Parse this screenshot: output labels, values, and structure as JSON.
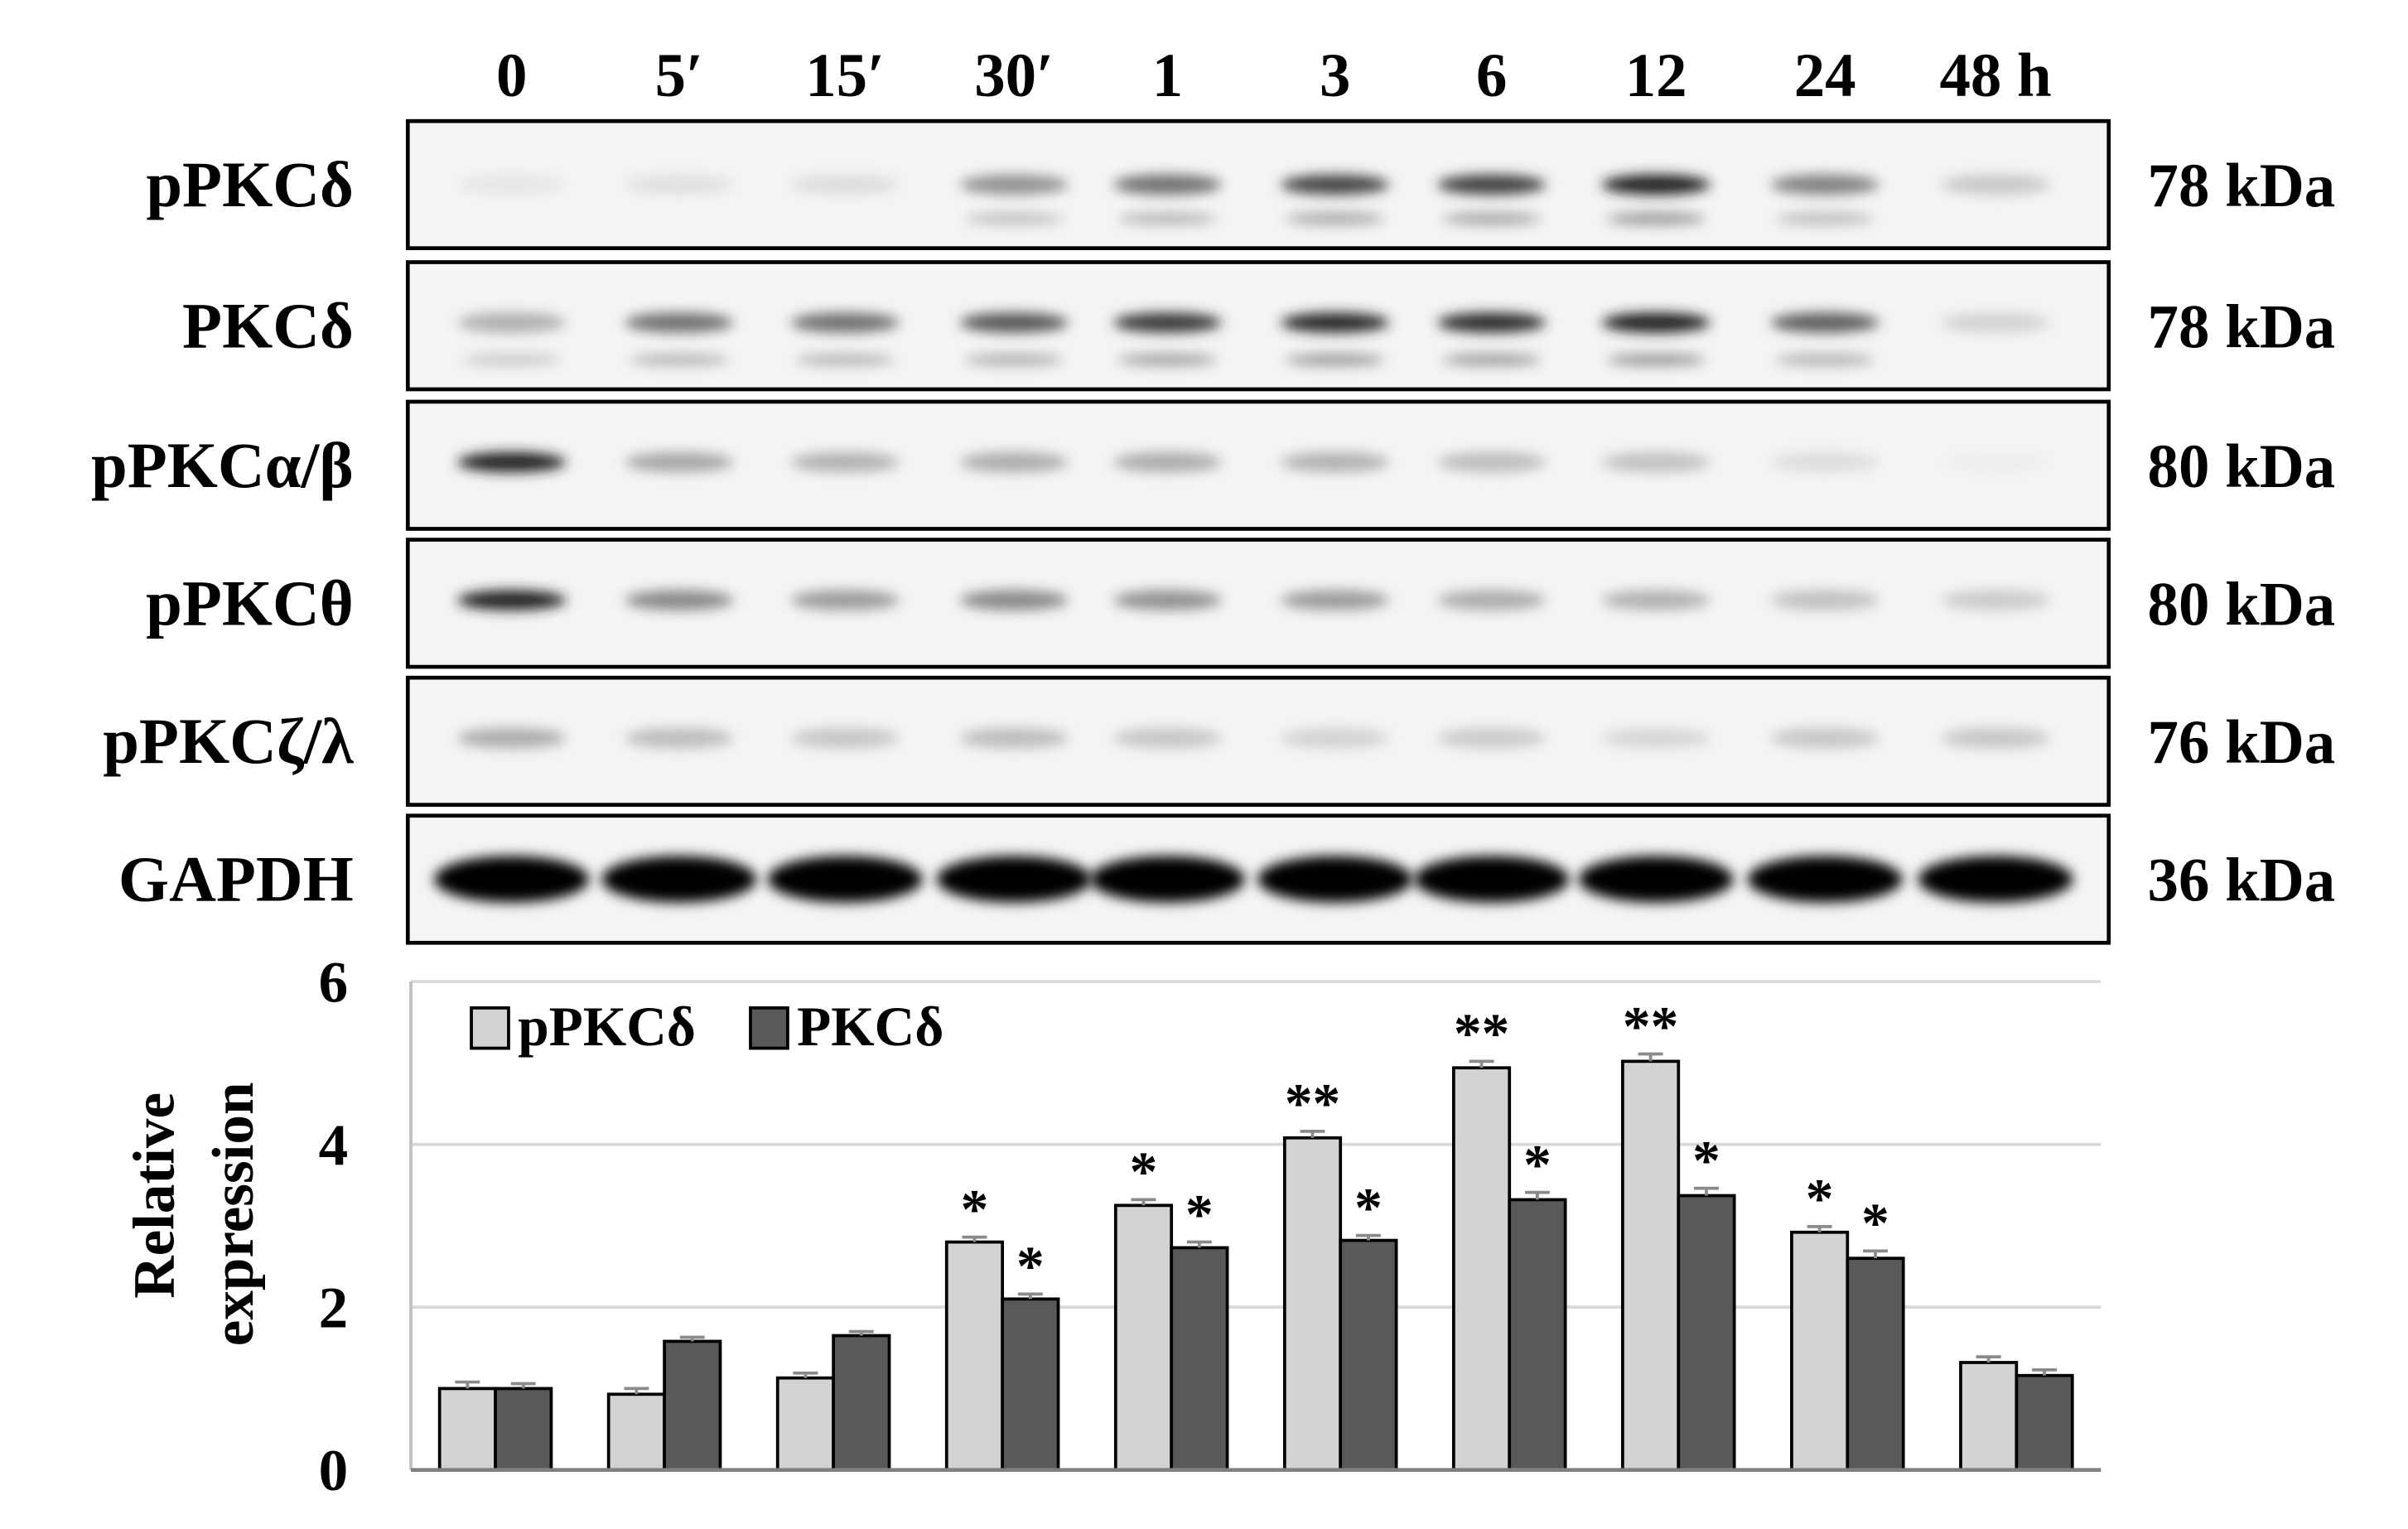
{
  "blot": {
    "time_labels": [
      "0",
      "5′",
      "15′",
      "30′",
      "1",
      "3",
      "6",
      "12",
      "24",
      "48 h"
    ],
    "rows": [
      {
        "label": "pPKCδ",
        "size": "78 kDa",
        "intensity": [
          0.08,
          0.12,
          0.14,
          0.45,
          0.55,
          0.7,
          0.72,
          0.85,
          0.5,
          0.25
        ]
      },
      {
        "label": "PKCδ",
        "size": "78 kDa",
        "intensity": [
          0.35,
          0.55,
          0.55,
          0.62,
          0.75,
          0.82,
          0.8,
          0.85,
          0.6,
          0.2
        ]
      },
      {
        "label": "pPKCα/β",
        "size": "80 kDa",
        "intensity": [
          0.85,
          0.38,
          0.34,
          0.36,
          0.36,
          0.34,
          0.3,
          0.28,
          0.14,
          0.03
        ]
      },
      {
        "label": "pPKCθ",
        "size": "80 kDa",
        "intensity": [
          0.85,
          0.48,
          0.42,
          0.48,
          0.45,
          0.42,
          0.36,
          0.34,
          0.28,
          0.24
        ]
      },
      {
        "label": "pPKCζ/λ",
        "size": "76 kDa",
        "intensity": [
          0.36,
          0.3,
          0.26,
          0.3,
          0.26,
          0.2,
          0.24,
          0.18,
          0.26,
          0.26
        ]
      },
      {
        "label": "GAPDH",
        "size": "36 kDa",
        "intensity": [
          1,
          1,
          1,
          1,
          1,
          1,
          1,
          1,
          1,
          1
        ]
      }
    ]
  },
  "chart_data": {
    "type": "bar",
    "categories": [
      "0",
      "5′",
      "15′",
      "30′",
      "1",
      "3",
      "6",
      "12",
      "24",
      "48 h"
    ],
    "ylabel_line1": "Relative",
    "ylabel_line2": "expression",
    "ylim": [
      0,
      6
    ],
    "yticks": [
      0,
      2,
      4,
      6
    ],
    "grid": true,
    "legend_position": "top-left",
    "series": [
      {
        "name": "pPKCδ",
        "color": "#d3d3d3",
        "values": [
          1.0,
          0.93,
          1.13,
          2.8,
          3.25,
          4.08,
          4.94,
          5.02,
          2.92,
          1.32
        ],
        "errors": [
          0.08,
          0.07,
          0.06,
          0.06,
          0.07,
          0.08,
          0.08,
          0.09,
          0.07,
          0.07
        ],
        "significance": [
          "",
          "",
          "",
          "*",
          "*",
          "**",
          "**",
          "**",
          "*",
          ""
        ]
      },
      {
        "name": "PKCδ",
        "color": "#595959",
        "values": [
          1.0,
          1.58,
          1.65,
          2.1,
          2.73,
          2.82,
          3.32,
          3.37,
          2.6,
          1.16
        ],
        "errors": [
          0.06,
          0.05,
          0.05,
          0.06,
          0.07,
          0.06,
          0.09,
          0.09,
          0.09,
          0.07
        ],
        "significance": [
          "",
          "",
          "",
          "*",
          "*",
          "*",
          "*",
          "*",
          "*",
          ""
        ]
      }
    ]
  }
}
